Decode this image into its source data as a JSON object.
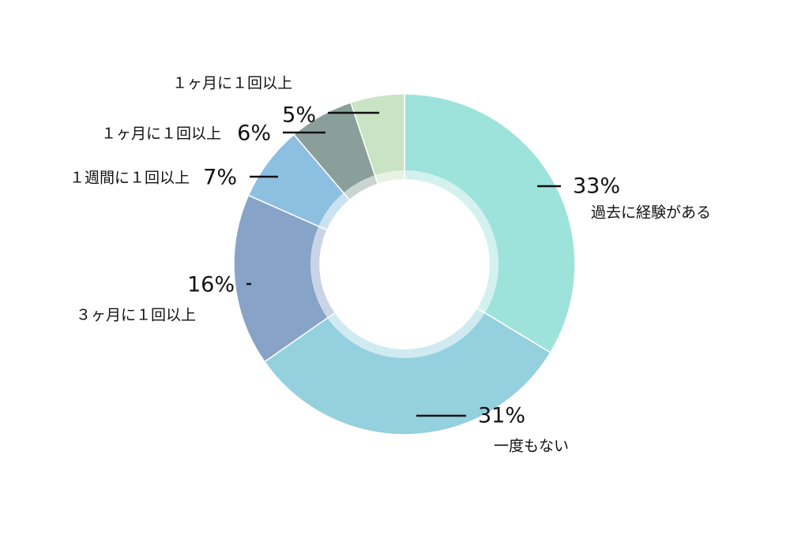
{
  "chart_data": {
    "type": "donut",
    "categories": [
      "過去に経験がある",
      "一度もない",
      "３ヶ月に１回以上",
      "１週間に１回以上",
      "１ヶ月に１回以上",
      "１ヶ月に１回以上"
    ],
    "values": [
      33,
      31,
      16,
      7,
      6,
      5
    ],
    "value_labels": [
      "33%",
      "31%",
      "16%",
      "7%",
      "6%",
      "5%"
    ],
    "colors": [
      "#9ee3db",
      "#94d0dd",
      "#87a3c7",
      "#8dbfe0",
      "#8a9f99",
      "#c9e3c4"
    ]
  }
}
